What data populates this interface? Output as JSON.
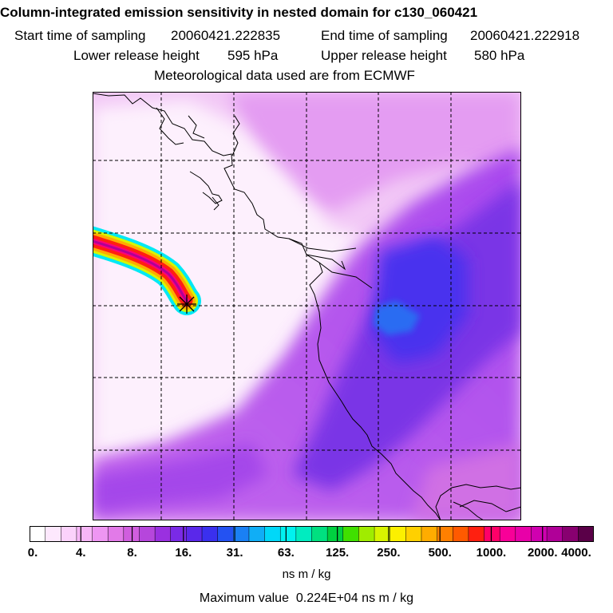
{
  "header": {
    "title": "Column-integrated emission sensitivity in nested domain for c130_060421",
    "start_label": "Start time of sampling",
    "start_value": "20060421.222835",
    "end_label": "End time of sampling",
    "end_value": "20060421.222918",
    "lower_label": "Lower release height",
    "lower_value": "595 hPa",
    "upper_label": "Upper release height",
    "upper_value": "580 hPa",
    "met_line": "Meteorological data used are from ECMWF"
  },
  "colorbar": {
    "colors": [
      "#ffffff",
      "#fde8fd",
      "#fbd2fb",
      "#f6b6f6",
      "#ee96f2",
      "#e27ae8",
      "#d05ede",
      "#b646dc",
      "#9a30e0",
      "#7a2ae6",
      "#5a28ea",
      "#3a30ee",
      "#2452f2",
      "#1a80f4",
      "#10aef6",
      "#00d8f8",
      "#00f2f0",
      "#00ecc0",
      "#00e080",
      "#00d040",
      "#40e000",
      "#a0ec00",
      "#d8f400",
      "#fcf000",
      "#ffd000",
      "#ffac00",
      "#ff8000",
      "#ff5a00",
      "#ff2010",
      "#ff0068",
      "#f80098",
      "#e800a8",
      "#d000b0",
      "#b00098",
      "#880070",
      "#5a0048"
    ],
    "major_ticks": [
      "0.",
      "4.",
      "8.",
      "16.",
      "31.",
      "63.",
      "125.",
      "250.",
      "500.",
      "1000.",
      "2000.",
      "4000."
    ],
    "units": "ns m / kg"
  },
  "max_value": {
    "label": "Maximum value",
    "value": "0.224E+04",
    "units": "ns m / kg"
  },
  "release_marker": "release-point-star"
}
